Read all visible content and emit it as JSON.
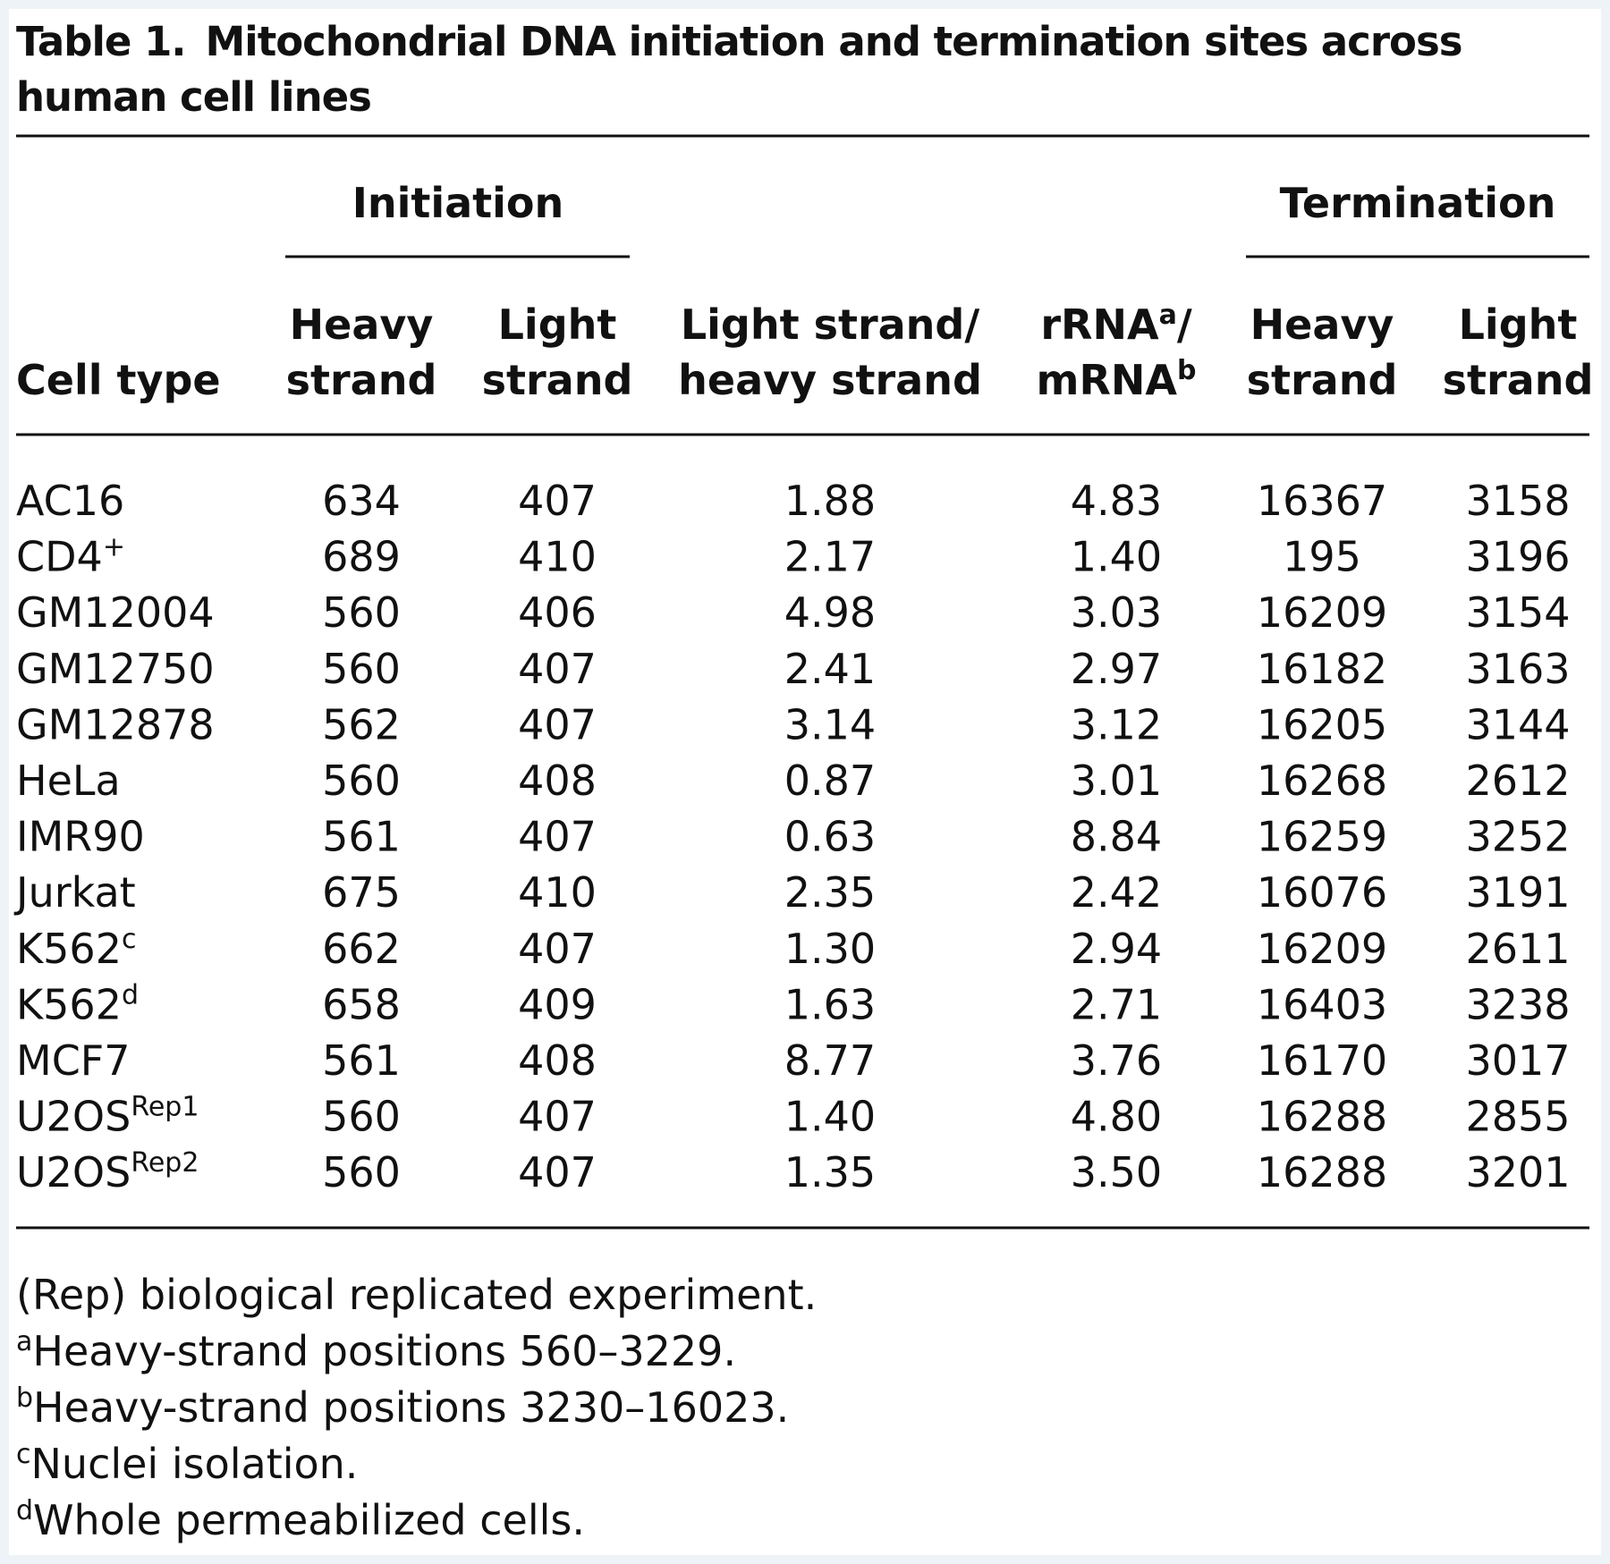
{
  "title": {
    "label": "Table 1.",
    "text": "Mitochondrial DNA initiation and termination sites across human cell lines"
  },
  "table": {
    "spanners": [
      "Initiation",
      "Termination"
    ],
    "columns": [
      {
        "line2": {
          "text": "Cell type"
        }
      },
      {
        "line1": {
          "text": "Heavy"
        },
        "line2": {
          "text": "strand"
        }
      },
      {
        "line1": {
          "text": "Light"
        },
        "line2": {
          "text": "strand"
        }
      },
      {
        "line1": {
          "text": "Light strand/"
        },
        "line2": {
          "text": "heavy strand"
        }
      },
      {
        "line1": {
          "text": "rRNA",
          "sup": "a",
          "end": "/"
        },
        "line2": {
          "text": "mRNA",
          "sup": "b"
        }
      },
      {
        "line1": {
          "text": "Heavy"
        },
        "line2": {
          "text": "strand"
        }
      },
      {
        "line1": {
          "text": "Light"
        },
        "line2": {
          "text": "strand"
        }
      }
    ],
    "rows": [
      {
        "cell": {
          "text": "AC16"
        },
        "values": [
          "634",
          "407",
          "1.88",
          "4.83",
          "16367",
          "3158"
        ]
      },
      {
        "cell": {
          "text": "CD4",
          "sup": "+"
        },
        "values": [
          "689",
          "410",
          "2.17",
          "1.40",
          "195",
          "3196"
        ]
      },
      {
        "cell": {
          "text": "GM12004"
        },
        "values": [
          "560",
          "406",
          "4.98",
          "3.03",
          "16209",
          "3154"
        ]
      },
      {
        "cell": {
          "text": "GM12750"
        },
        "values": [
          "560",
          "407",
          "2.41",
          "2.97",
          "16182",
          "3163"
        ]
      },
      {
        "cell": {
          "text": "GM12878"
        },
        "values": [
          "562",
          "407",
          "3.14",
          "3.12",
          "16205",
          "3144"
        ]
      },
      {
        "cell": {
          "text": "HeLa"
        },
        "values": [
          "560",
          "408",
          "0.87",
          "3.01",
          "16268",
          "2612"
        ]
      },
      {
        "cell": {
          "text": "IMR90"
        },
        "values": [
          "561",
          "407",
          "0.63",
          "8.84",
          "16259",
          "3252"
        ]
      },
      {
        "cell": {
          "text": "Jurkat"
        },
        "values": [
          "675",
          "410",
          "2.35",
          "2.42",
          "16076",
          "3191"
        ]
      },
      {
        "cell": {
          "text": "K562",
          "sup": "c"
        },
        "values": [
          "662",
          "407",
          "1.30",
          "2.94",
          "16209",
          "2611"
        ]
      },
      {
        "cell": {
          "text": "K562",
          "sup": "d"
        },
        "values": [
          "658",
          "409",
          "1.63",
          "2.71",
          "16403",
          "3238"
        ]
      },
      {
        "cell": {
          "text": "MCF7"
        },
        "values": [
          "561",
          "408",
          "8.77",
          "3.76",
          "16170",
          "3017"
        ]
      },
      {
        "cell": {
          "text": "U2OS",
          "sup": "Rep1"
        },
        "values": [
          "560",
          "407",
          "1.40",
          "4.80",
          "16288",
          "2855"
        ]
      },
      {
        "cell": {
          "text": "U2OS",
          "sup": "Rep2"
        },
        "values": [
          "560",
          "407",
          "1.35",
          "3.50",
          "16288",
          "3201"
        ]
      }
    ]
  },
  "footnotes": [
    {
      "text": "(Rep) biological replicated experiment."
    },
    {
      "mark": "a",
      "text": "Heavy-strand positions 560–3229."
    },
    {
      "mark": "b",
      "text": "Heavy-strand positions 3230–16023."
    },
    {
      "mark": "c",
      "text": "Nuclei isolation."
    },
    {
      "mark": "d",
      "text": "Whole permeabilized cells."
    }
  ]
}
